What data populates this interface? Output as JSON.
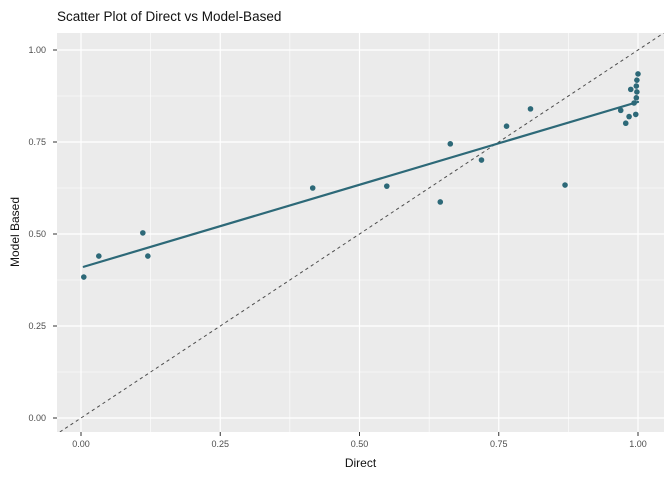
{
  "chart_data": {
    "type": "scatter",
    "title": "Scatter Plot of Direct vs Model-Based",
    "xlabel": "Direct",
    "ylabel": "Model Based",
    "xlim": [
      -0.043,
      1.047
    ],
    "ylim": [
      -0.038,
      1.046
    ],
    "x_ticks": [
      0,
      0.25,
      0.5,
      0.75,
      1
    ],
    "y_ticks": [
      0,
      0.25,
      0.5,
      0.75,
      1
    ],
    "x_tick_labels": [
      "0.00",
      "0.25",
      "0.50",
      "0.75",
      "1.00"
    ],
    "y_tick_labels": [
      "0.00",
      "0.25",
      "0.50",
      "0.75",
      "1.00"
    ],
    "x_minor_ticks": [
      0.125,
      0.375,
      0.625,
      0.875
    ],
    "y_minor_ticks": [
      0.125,
      0.375,
      0.625,
      0.875
    ],
    "grid": "major+minor",
    "legend": "none",
    "points": [
      [
        0.005,
        0.383
      ],
      [
        0.032,
        0.44
      ],
      [
        0.111,
        0.503
      ],
      [
        0.12,
        0.44
      ],
      [
        0.416,
        0.625
      ],
      [
        0.549,
        0.63
      ],
      [
        0.645,
        0.587
      ],
      [
        0.663,
        0.745
      ],
      [
        0.719,
        0.701
      ],
      [
        0.764,
        0.793
      ],
      [
        0.807,
        0.84
      ],
      [
        0.869,
        0.633
      ],
      [
        0.969,
        0.836
      ],
      [
        0.978,
        0.801
      ],
      [
        0.984,
        0.819
      ],
      [
        0.996,
        0.825
      ],
      [
        0.987,
        0.893
      ],
      [
        0.993,
        0.856
      ],
      [
        0.997,
        0.87
      ],
      [
        0.997,
        0.902
      ],
      [
        0.998,
        0.886
      ],
      [
        0.998,
        0.918
      ],
      [
        1.0,
        0.935
      ]
    ],
    "regression_line": {
      "label": "linear fit",
      "x1": 0.005,
      "y1": 0.411,
      "x2": 1.0,
      "y2": 0.859
    },
    "reference_line": {
      "label": "identity",
      "equation": "y = x",
      "style": "dashed"
    },
    "colors": {
      "point": "#2d6978",
      "fit_line": "#2d6978",
      "panel_bg": "#ebebeb",
      "grid_line": "#ffffff",
      "reference_line": "#4d4d4d",
      "tick_label": "#4d4d4d",
      "tick_mark": "#333333",
      "title": "#111111"
    }
  }
}
